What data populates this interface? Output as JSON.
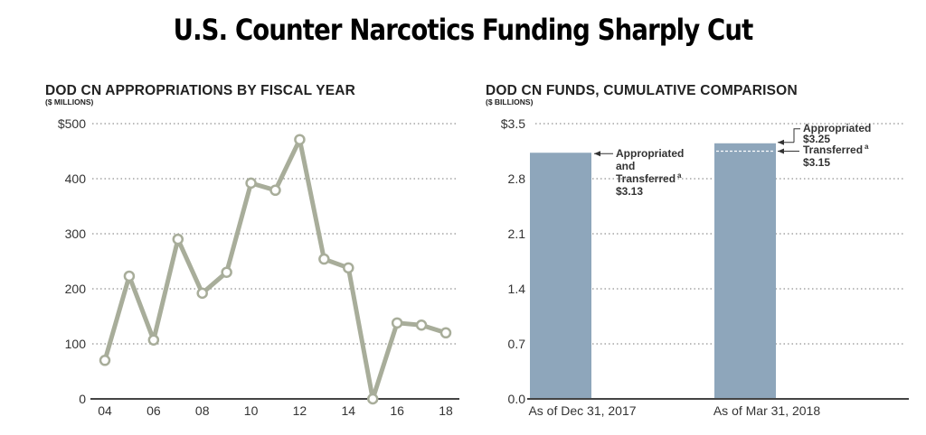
{
  "page_title": "U.S. Counter Narcotics Funding Sharply Cut",
  "colors": {
    "line": "#a8ad9a",
    "bar": "#8ea6bb",
    "axis": "#444444",
    "grid": "#777777"
  },
  "chart_data": [
    {
      "type": "line",
      "title": "DOD CN APPROPRIATIONS BY FISCAL YEAR",
      "subtitle": "($ MILLIONS)",
      "xlabel": "",
      "ylabel": "$ millions",
      "x": [
        "04",
        "05",
        "06",
        "07",
        "08",
        "09",
        "10",
        "11",
        "12",
        "13",
        "14",
        "15",
        "16",
        "17",
        "18"
      ],
      "x_tick_labels": [
        "04",
        "06",
        "08",
        "10",
        "12",
        "14",
        "16",
        "18"
      ],
      "y_tick_labels": [
        "0",
        "100",
        "200",
        "300",
        "400",
        "$500"
      ],
      "y_ticks": [
        0,
        100,
        200,
        300,
        400,
        500
      ],
      "ylim": [
        0,
        500
      ],
      "grid": true,
      "series": [
        {
          "name": "DOD CN appropriations",
          "values": [
            70,
            223,
            107,
            290,
            192,
            230,
            392,
            379,
            471,
            254,
            238,
            0,
            138,
            134,
            120
          ]
        }
      ]
    },
    {
      "type": "bar",
      "title": "DOD CN FUNDS, CUMULATIVE COMPARISON",
      "subtitle": "($ BILLIONS)",
      "categories": [
        "As of Dec 31, 2017",
        "As of Mar 31, 2018"
      ],
      "values": [
        3.13,
        3.25
      ],
      "secondary_marker": {
        "category": "As of Mar 31, 2018",
        "name": "Transferred",
        "value": 3.15
      },
      "y_tick_labels": [
        "0.0",
        "0.7",
        "1.4",
        "2.1",
        "2.8",
        "$3.5"
      ],
      "y_ticks": [
        0,
        0.7,
        1.4,
        2.1,
        2.8,
        3.5
      ],
      "ylim": [
        0,
        3.5
      ],
      "grid": true,
      "annotations": [
        {
          "lines": [
            "Appropriated",
            "and",
            "Transferred",
            "$3.13"
          ],
          "superscript": "a",
          "target": "bar-1"
        },
        {
          "lines": [
            "Appropriated",
            "$3.25"
          ],
          "target": "bar-2-top"
        },
        {
          "lines": [
            "Transferred",
            "$3.15"
          ],
          "superscript": "a",
          "target": "bar-2-transferred"
        }
      ]
    }
  ]
}
